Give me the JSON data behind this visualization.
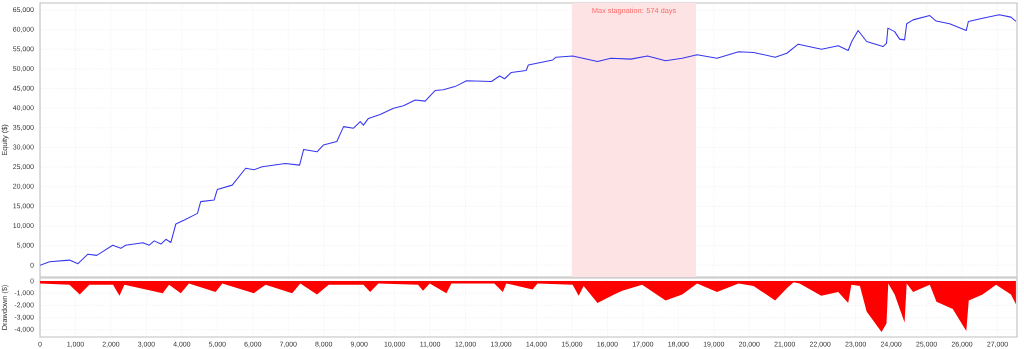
{
  "chart_data": [
    {
      "type": "line",
      "ylabel": "Equity ($)",
      "color": "#3838f0",
      "grid": true,
      "tick_labels": "y",
      "x": [
        0,
        270,
        830,
        1070,
        1350,
        1600,
        2050,
        2280,
        2410,
        2900,
        3080,
        3220,
        3410,
        3550,
        3690,
        3830,
        4070,
        4440,
        4530,
        4910,
        5000,
        5420,
        5800,
        6030,
        6265,
        6920,
        7320,
        7435,
        7810,
        7990,
        8370,
        8560,
        8840,
        9030,
        9120,
        9260,
        9590,
        9970,
        10250,
        10580,
        10860,
        11140,
        11370,
        11700,
        12030,
        12730,
        12960,
        13100,
        13290,
        13710,
        13770,
        14460,
        14550,
        15020,
        15720,
        16100,
        16660,
        17130,
        17640,
        18110,
        18530,
        19090,
        19700,
        20120,
        20730,
        21060,
        21380,
        22040,
        22510,
        22790,
        22890,
        23070,
        23310,
        23770,
        23870,
        23910,
        24100,
        24240,
        24380,
        24440,
        24620,
        25090,
        25270,
        25650,
        26120,
        26180,
        26580,
        27050,
        27380,
        27520
      ],
      "values": [
        0,
        900,
        1300,
        400,
        2800,
        2500,
        5100,
        4300,
        5100,
        5700,
        5100,
        6200,
        5400,
        6600,
        5800,
        10500,
        11500,
        13200,
        16200,
        16600,
        19300,
        20400,
        24700,
        24300,
        25100,
        25900,
        25500,
        29500,
        28900,
        30600,
        31500,
        35300,
        34900,
        36600,
        35700,
        37400,
        38400,
        40000,
        40600,
        42100,
        41800,
        44500,
        44700,
        45500,
        47000,
        46800,
        48200,
        47500,
        49100,
        49600,
        51000,
        52300,
        53000,
        53300,
        51900,
        52700,
        52500,
        53300,
        52100,
        52700,
        53600,
        52700,
        54400,
        54200,
        53000,
        54000,
        56300,
        55000,
        55900,
        54700,
        57000,
        59800,
        57000,
        55700,
        56500,
        60400,
        59500,
        57600,
        57400,
        61500,
        62500,
        63600,
        62200,
        61500,
        59800,
        62100,
        62900,
        63800,
        63200,
        62100
      ],
      "xlim": [
        0,
        27550
      ],
      "ylim": [
        -3000,
        66800
      ],
      "xticks": [
        {
          "value": 0,
          "label": null
        },
        {
          "value": 1000,
          "label": null
        },
        {
          "value": 2000,
          "label": null
        },
        {
          "value": 3000,
          "label": null
        },
        {
          "value": 4000,
          "label": null
        },
        {
          "value": 5000,
          "label": null
        },
        {
          "value": 6000,
          "label": null
        },
        {
          "value": 7000,
          "label": null
        },
        {
          "value": 8000,
          "label": null
        },
        {
          "value": 9000,
          "label": null
        },
        {
          "value": 10000,
          "label": null
        },
        {
          "value": 11000,
          "label": null
        },
        {
          "value": 12000,
          "label": null
        },
        {
          "value": 13000,
          "label": null
        },
        {
          "value": 14000,
          "label": null
        },
        {
          "value": 15000,
          "label": null
        },
        {
          "value": 16000,
          "label": null
        },
        {
          "value": 17000,
          "label": null
        },
        {
          "value": 18000,
          "label": null
        },
        {
          "value": 19000,
          "label": null
        },
        {
          "value": 20000,
          "label": null
        },
        {
          "value": 21000,
          "label": null
        },
        {
          "value": 22000,
          "label": null
        },
        {
          "value": 23000,
          "label": null
        },
        {
          "value": 24000,
          "label": null
        },
        {
          "value": 25000,
          "label": null
        },
        {
          "value": 26000,
          "label": null
        },
        {
          "value": 27000,
          "label": null
        }
      ],
      "yticks": [
        0,
        {
          "value": 5000,
          "label": "5,000"
        },
        {
          "value": 10000,
          "label": "10,000"
        },
        {
          "value": 15000,
          "label": "15,000"
        },
        {
          "value": 20000,
          "label": "20,000"
        },
        {
          "value": 25000,
          "label": "25,000"
        },
        {
          "value": 30000,
          "label": "30,000"
        },
        {
          "value": 35000,
          "label": "35,000"
        },
        {
          "value": 40000,
          "label": "40,000"
        },
        {
          "value": 45000,
          "label": "45,000"
        },
        {
          "value": 50000,
          "label": "50,000"
        },
        {
          "value": 55000,
          "label": "55,000"
        },
        {
          "value": 60000,
          "label": "60,000"
        },
        {
          "value": 65000,
          "label": "65,000"
        }
      ],
      "bands": [
        {
          "axis": "x",
          "from": 15000,
          "to": 18500,
          "label": "Max stagnation: 574 days",
          "color": "#fde3e3"
        }
      ]
    },
    {
      "type": "area",
      "ylabel": "Drawdown ($)",
      "color": "#ff0000",
      "grid": true,
      "x": [
        0,
        830,
        1120,
        1390,
        2060,
        2240,
        2380,
        3460,
        3640,
        3970,
        4200,
        4950,
        5140,
        6030,
        6360,
        7110,
        7340,
        7810,
        8140,
        9120,
        9310,
        9540,
        10660,
        10800,
        10990,
        11460,
        11600,
        12810,
        13050,
        13150,
        13890,
        14030,
        15020,
        15190,
        15330,
        15720,
        16190,
        16420,
        16980,
        17640,
        18110,
        18530,
        19090,
        19700,
        20120,
        20730,
        21060,
        21250,
        21420,
        22030,
        22510,
        22790,
        22880,
        23120,
        23310,
        23730,
        23870,
        23920,
        24100,
        24380,
        24440,
        24620,
        25090,
        25280,
        25740,
        26120,
        26190,
        26580,
        26960,
        27380,
        27520
      ],
      "values": [
        -200,
        -300,
        -1100,
        -300,
        -300,
        -1200,
        -300,
        -1000,
        -300,
        -1000,
        -200,
        -900,
        -200,
        -1000,
        -300,
        -1000,
        -200,
        -1100,
        -300,
        -300,
        -900,
        -200,
        -300,
        -800,
        -200,
        -1000,
        -200,
        -200,
        -900,
        -200,
        -700,
        -200,
        -300,
        -1200,
        -400,
        -1800,
        -1100,
        -800,
        -300,
        -1600,
        -1100,
        -200,
        -900,
        -200,
        -400,
        -1600,
        -600,
        -100,
        -200,
        -1200,
        -900,
        -1800,
        -300,
        -400,
        -2500,
        -4200,
        -3500,
        -200,
        -1100,
        -3400,
        -200,
        -900,
        -300,
        -1700,
        -2300,
        -4100,
        -1600,
        -1100,
        -300,
        -1100,
        -1900
      ],
      "xlim": [
        0,
        27550
      ],
      "ylim": [
        -4600,
        250
      ],
      "xticks": [
        {
          "value": 0,
          "label": "0"
        },
        {
          "value": 1000,
          "label": "1,000"
        },
        {
          "value": 2000,
          "label": "2,000"
        },
        {
          "value": 3000,
          "label": "3,000"
        },
        {
          "value": 4000,
          "label": "4,000"
        },
        {
          "value": 5000,
          "label": "5,000"
        },
        {
          "value": 6000,
          "label": "6,000"
        },
        {
          "value": 7000,
          "label": "7,000"
        },
        {
          "value": 8000,
          "label": "8,000"
        },
        {
          "value": 9000,
          "label": "9,000"
        },
        {
          "value": 10000,
          "label": "10,000"
        },
        {
          "value": 11000,
          "label": "11,000"
        },
        {
          "value": 12000,
          "label": "12,000"
        },
        {
          "value": 13000,
          "label": "13,000"
        },
        {
          "value": 14000,
          "label": "14,000"
        },
        {
          "value": 15000,
          "label": "15,000"
        },
        {
          "value": 16000,
          "label": "16,000"
        },
        {
          "value": 17000,
          "label": "17,000"
        },
        {
          "value": 18000,
          "label": "18,000"
        },
        {
          "value": 19000,
          "label": "19,000"
        },
        {
          "value": 20000,
          "label": "20,000"
        },
        {
          "value": 21000,
          "label": "21,000"
        },
        {
          "value": 22000,
          "label": "22,000"
        },
        {
          "value": 23000,
          "label": "23,000"
        },
        {
          "value": 24000,
          "label": "24,000"
        },
        {
          "value": 25000,
          "label": "25,000"
        },
        {
          "value": 26000,
          "label": "26,000"
        },
        {
          "value": 27000,
          "label": "27,000"
        }
      ],
      "yticks": [
        0,
        {
          "value": -1000,
          "label": "-1,000"
        },
        {
          "value": -2000,
          "label": "-2,000"
        },
        {
          "value": -3000,
          "label": "-3,000"
        },
        {
          "value": -4000,
          "label": "-4,000"
        }
      ]
    }
  ]
}
